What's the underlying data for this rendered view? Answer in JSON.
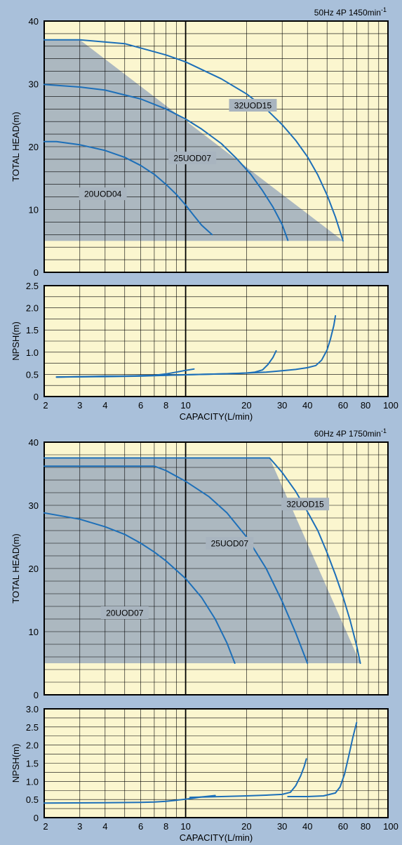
{
  "colors": {
    "page_background": "#a9c0da",
    "plot_background": "#fbf6cf",
    "operating_range_fill": "#a8b4bf",
    "curve": "#1d6fb8",
    "grid": "#000000"
  },
  "chart_data": [
    {
      "id": "head50",
      "type": "line",
      "header": "50Hz 4P 1450min",
      "header_sup": "-1",
      "ylabel": "TOTAL HEAD(m)",
      "xlabel": "",
      "x_scale": "log",
      "xlim": [
        2,
        100
      ],
      "ylim": [
        0,
        40
      ],
      "y_ticks": [
        "0",
        "10",
        "20",
        "30",
        "40"
      ],
      "y_minor_step": 2,
      "grid": true,
      "operating_range": {
        "x": [
          2,
          3,
          60,
          60,
          2
        ],
        "y": [
          37,
          37,
          5,
          5,
          5
        ]
      },
      "series": [
        {
          "name": "20UOD04",
          "x": [
            2,
            2.3,
            3,
            4,
            5,
            6,
            7,
            8,
            9,
            10,
            11,
            12,
            13.5
          ],
          "y": [
            20.8,
            20.8,
            20.3,
            19.4,
            18.3,
            17.0,
            15.6,
            14.0,
            12.4,
            10.7,
            9.0,
            7.5,
            6.0
          ]
        },
        {
          "name": "25UOD07",
          "x": [
            2,
            3,
            4,
            6,
            8,
            10,
            12,
            15,
            18,
            21,
            24,
            27,
            30,
            32
          ],
          "y": [
            29.9,
            29.5,
            29.0,
            27.6,
            26.0,
            24.4,
            22.8,
            20.5,
            18.0,
            15.6,
            13.0,
            10.4,
            7.6,
            5.1
          ]
        },
        {
          "name": "32UOD15",
          "x": [
            2,
            3,
            5,
            8,
            10,
            15,
            20,
            25,
            30,
            35,
            40,
            45,
            50,
            55,
            60
          ],
          "y": [
            37,
            37,
            36.4,
            34.6,
            33.5,
            30.8,
            28.4,
            26.0,
            23.5,
            21.0,
            18.4,
            15.5,
            12.3,
            8.8,
            5.0
          ]
        }
      ],
      "labels": [
        {
          "series": "20UOD04",
          "text": "20UOD04",
          "x": 3.9,
          "y": 12.5
        },
        {
          "series": "25UOD07",
          "text": "25UOD07",
          "x": 10.8,
          "y": 18.2
        },
        {
          "series": "32UOD15",
          "text": "32UOD15",
          "x": 21.5,
          "y": 26.6
        }
      ]
    },
    {
      "id": "npsh50",
      "type": "line",
      "ylabel": "NPSH(m)",
      "xlabel": "CAPACITY(L/min)",
      "x_scale": "log",
      "xlim": [
        2,
        100
      ],
      "ylim": [
        0,
        2.5
      ],
      "x_ticks": [
        2,
        3,
        4,
        6,
        8,
        10,
        20,
        30,
        40,
        60,
        80,
        100
      ],
      "x_tick_labels": [
        "2",
        "3",
        "4",
        "6",
        "8",
        "10",
        "20",
        "30",
        "40",
        "60",
        "80",
        "100"
      ],
      "y_ticks": [
        "0",
        "0.5",
        "1.0",
        "1.5",
        "2.0",
        "2.5"
      ],
      "y_minor_step": 0.25,
      "grid": true,
      "series": [
        {
          "name": "20UOD04",
          "x": [
            2.3,
            3,
            4,
            5,
            6,
            7,
            8,
            9,
            10,
            11
          ],
          "y": [
            0.44,
            0.45,
            0.46,
            0.46,
            0.47,
            0.48,
            0.51,
            0.55,
            0.59,
            0.62
          ]
        },
        {
          "name": "25UOD07",
          "x": [
            2.3,
            4,
            6,
            8,
            10,
            12,
            15,
            18,
            20,
            22,
            24,
            25.5,
            27,
            28
          ],
          "y": [
            0.44,
            0.45,
            0.46,
            0.48,
            0.49,
            0.5,
            0.51,
            0.52,
            0.53,
            0.55,
            0.6,
            0.72,
            0.88,
            1.03
          ]
        },
        {
          "name": "32UOD15",
          "x": [
            2.3,
            5,
            10,
            15,
            20,
            25,
            30,
            35,
            40,
            44,
            47,
            50,
            52,
            54,
            55
          ],
          "y": [
            0.44,
            0.46,
            0.49,
            0.51,
            0.53,
            0.55,
            0.58,
            0.61,
            0.65,
            0.7,
            0.82,
            1.05,
            1.3,
            1.6,
            1.82
          ]
        }
      ]
    },
    {
      "id": "head60",
      "type": "line",
      "header": "60Hz 4P 1750min",
      "header_sup": "-1",
      "ylabel": "TOTAL HEAD(m)",
      "xlabel": "",
      "x_scale": "log",
      "xlim": [
        2,
        100
      ],
      "ylim": [
        0,
        40
      ],
      "y_ticks": [
        "0",
        "10",
        "20",
        "30",
        "40"
      ],
      "y_minor_step": 2,
      "grid": true,
      "operating_range": {
        "x": [
          2,
          26,
          73,
          73,
          2
        ],
        "y": [
          37.5,
          37.5,
          5,
          5,
          5
        ]
      },
      "series": [
        {
          "name": "20UOD07",
          "x": [
            2,
            3,
            4,
            5,
            6,
            7,
            8,
            10,
            12,
            14,
            16,
            17.5
          ],
          "y": [
            28.8,
            27.8,
            26.6,
            25.4,
            24.0,
            22.6,
            21.2,
            18.4,
            15.4,
            12.0,
            8.2,
            5.0
          ]
        },
        {
          "name": "25UOD07",
          "x": [
            2,
            4,
            7,
            8,
            10,
            13,
            16,
            20,
            25,
            30,
            35,
            40
          ],
          "y": [
            36.2,
            36.2,
            36.2,
            35.5,
            33.8,
            31.4,
            28.8,
            25.0,
            20.0,
            14.8,
            9.8,
            5.0
          ]
        },
        {
          "name": "32UOD15",
          "x": [
            2,
            10,
            26,
            30,
            35,
            40,
            45,
            50,
            55,
            60,
            65,
            70,
            73
          ],
          "y": [
            37.5,
            37.5,
            37.5,
            35.2,
            32.2,
            29.0,
            26.0,
            22.5,
            19.0,
            15.5,
            11.8,
            7.8,
            5.0
          ]
        }
      ],
      "labels": [
        {
          "series": "20UOD07",
          "text": "20UOD07",
          "x": 5.0,
          "y": 13.0
        },
        {
          "series": "25UOD07",
          "text": "25UOD07",
          "x": 16.5,
          "y": 24.0
        },
        {
          "series": "32UOD15",
          "text": "32UOD15",
          "x": 39.0,
          "y": 30.2
        }
      ]
    },
    {
      "id": "npsh60",
      "type": "line",
      "ylabel": "NPSH(m)",
      "xlabel": "CAPACITY(L/min)",
      "x_scale": "log",
      "xlim": [
        2,
        100
      ],
      "ylim": [
        0,
        3.0
      ],
      "x_ticks": [
        2,
        3,
        4,
        6,
        8,
        10,
        20,
        30,
        40,
        60,
        80,
        100
      ],
      "x_tick_labels": [
        "2",
        "3",
        "4",
        "6",
        "8",
        "10",
        "20",
        "30",
        "40",
        "60",
        "80",
        "100"
      ],
      "y_ticks": [
        "0",
        "0.5",
        "1.0",
        "1.5",
        "2.0",
        "2.5",
        "3.0"
      ],
      "y_minor_step": 0.25,
      "grid": true,
      "series": [
        {
          "name": "20UOD07",
          "x": [
            2,
            4,
            6,
            7,
            8,
            9,
            10,
            11,
            12,
            13,
            14
          ],
          "y": [
            0.4,
            0.41,
            0.42,
            0.43,
            0.45,
            0.48,
            0.51,
            0.54,
            0.57,
            0.59,
            0.61
          ]
        },
        {
          "name": "25UOD07",
          "x": [
            10.5,
            15,
            20,
            25,
            30,
            33,
            35,
            37,
            38.5,
            39.5
          ],
          "y": [
            0.56,
            0.58,
            0.6,
            0.62,
            0.64,
            0.7,
            0.88,
            1.15,
            1.4,
            1.62
          ]
        },
        {
          "name": "32UOD15",
          "x": [
            32,
            40,
            48,
            55,
            58,
            61,
            64,
            67,
            70
          ],
          "y": [
            0.58,
            0.58,
            0.6,
            0.68,
            0.85,
            1.2,
            1.7,
            2.2,
            2.62
          ]
        }
      ]
    }
  ]
}
